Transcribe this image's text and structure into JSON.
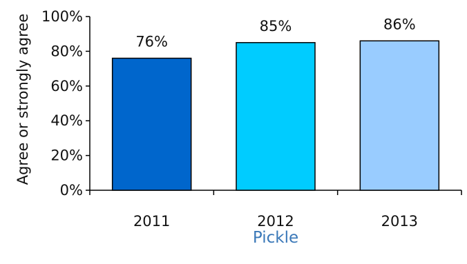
{
  "chart_data": {
    "type": "bar",
    "title": "",
    "xlabel": "Pickle",
    "ylabel": "Agree or strongly agree",
    "categories": [
      "2011",
      "2012",
      "2013"
    ],
    "values": [
      76,
      85,
      86
    ],
    "value_labels": [
      "76%",
      "85%",
      "86%"
    ],
    "ylim": [
      0,
      100
    ],
    "yticks": [
      0,
      20,
      40,
      60,
      80,
      100
    ],
    "ytick_labels": [
      "0%",
      "20%",
      "40%",
      "60%",
      "80%",
      "100%"
    ],
    "grid": false,
    "legend": "none",
    "bar_colors": [
      "#0066cc",
      "#00ccff",
      "#99ccff"
    ],
    "xlabel_color": "#3a78b8"
  }
}
